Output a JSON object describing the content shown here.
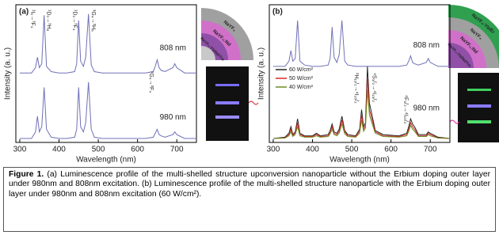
{
  "chart_data": [
    {
      "type": "line",
      "title": "(a)",
      "x_label": "Wavelength (nm)",
      "y_label": "Intensity (a. u.)",
      "x": [
        300,
        330,
        340,
        345,
        350,
        356,
        362,
        368,
        380,
        400,
        410,
        420,
        440,
        445,
        450,
        455,
        462,
        468,
        475,
        482,
        490,
        510,
        520,
        525,
        530,
        535,
        540,
        545,
        550,
        560,
        580,
        620,
        640,
        645,
        650,
        655,
        660,
        670,
        690,
        695,
        700,
        720,
        750
      ],
      "series": [
        {
          "name": "808 nm",
          "color": "#7070b8",
          "values": [
            5.3,
            5.3,
            5.7,
            6.5,
            5.7,
            6.0,
            9.7,
            5.8,
            5.4,
            5.3,
            5.3,
            5.3,
            5.4,
            6.0,
            9.3,
            6.2,
            5.8,
            6.5,
            9.8,
            5.9,
            5.4,
            5.3,
            5.3,
            5.3,
            5.3,
            5.3,
            5.3,
            5.3,
            5.3,
            5.3,
            5.3,
            5.3,
            5.4,
            5.8,
            6.3,
            5.7,
            5.5,
            5.4,
            5.7,
            6.0,
            5.7,
            5.3,
            5.3
          ]
        },
        {
          "name": "980 nm",
          "color": "#7070b8",
          "values": [
            0.3,
            0.3,
            0.8,
            2.0,
            0.8,
            1.2,
            4.2,
            1.0,
            0.4,
            0.3,
            0.3,
            0.3,
            0.4,
            1.0,
            4.2,
            1.2,
            0.8,
            1.5,
            4.6,
            1.0,
            0.4,
            0.3,
            0.3,
            0.3,
            0.3,
            0.3,
            0.3,
            0.3,
            0.3,
            0.3,
            0.3,
            0.3,
            0.4,
            0.7,
            1.0,
            0.6,
            0.5,
            0.4,
            0.6,
            0.8,
            0.6,
            0.3,
            0.3
          ]
        }
      ],
      "xlim": [
        290,
        750
      ],
      "xticks": [
        300,
        400,
        500,
        600,
        700
      ],
      "ylim": [
        0,
        10.5
      ],
      "annotations": [
        "¹I₆→³F₄",
        "¹D₂→³H₆",
        "¹D₂→³F₄",
        "¹G₄→³H₆",
        "¹G₄→³F₄"
      ]
    },
    {
      "type": "line",
      "title": "(b)",
      "x_label": "Wavelength (nm)",
      "y_label": "Intensity (a. u.)",
      "x": [
        300,
        330,
        340,
        345,
        350,
        356,
        362,
        368,
        380,
        400,
        410,
        420,
        440,
        445,
        450,
        455,
        462,
        468,
        475,
        482,
        490,
        510,
        520,
        525,
        530,
        535,
        540,
        545,
        550,
        560,
        580,
        620,
        640,
        645,
        650,
        655,
        660,
        670,
        690,
        695,
        700,
        720,
        750
      ],
      "series": [
        {
          "name": "808 nm",
          "color": "#7070b8",
          "values": [
            5.8,
            5.8,
            6.2,
            7.0,
            6.2,
            6.4,
            9.3,
            6.2,
            5.9,
            5.8,
            5.8,
            5.8,
            5.9,
            6.4,
            8.8,
            6.5,
            6.1,
            6.7,
            9.3,
            6.2,
            5.9,
            5.8,
            5.8,
            5.8,
            5.8,
            5.8,
            5.8,
            5.8,
            5.8,
            5.8,
            5.8,
            5.8,
            5.9,
            6.2,
            6.6,
            6.1,
            6.0,
            5.9,
            6.1,
            6.4,
            6.1,
            5.8,
            5.8
          ]
        },
        {
          "name": "60 W/cm²",
          "color": "#222222",
          "values": [
            0.3,
            0.4,
            0.7,
            1.2,
            0.6,
            0.8,
            1.8,
            0.7,
            0.5,
            0.5,
            0.7,
            0.5,
            0.6,
            0.9,
            1.4,
            0.8,
            0.7,
            1.0,
            2.0,
            0.9,
            0.6,
            0.5,
            1.0,
            2.5,
            1.2,
            1.5,
            5.8,
            3.0,
            2.3,
            0.9,
            0.6,
            0.5,
            0.7,
            1.2,
            1.8,
            1.4,
            1.2,
            0.6,
            0.6,
            0.8,
            0.7,
            0.4,
            0.3
          ]
        },
        {
          "name": "50 W/cm²",
          "color": "#d62728",
          "values": [
            0.3,
            0.35,
            0.6,
            1.0,
            0.5,
            0.7,
            1.5,
            0.6,
            0.45,
            0.45,
            0.6,
            0.45,
            0.5,
            0.8,
            1.2,
            0.7,
            0.6,
            0.85,
            1.7,
            0.8,
            0.5,
            0.45,
            0.85,
            2.1,
            1.0,
            1.3,
            4.9,
            2.5,
            1.9,
            0.8,
            0.5,
            0.45,
            0.6,
            1.0,
            1.5,
            1.2,
            1.0,
            0.5,
            0.5,
            0.7,
            0.6,
            0.35,
            0.3
          ]
        },
        {
          "name": "40 W/cm²",
          "color": "#6b8e23",
          "values": [
            0.3,
            0.33,
            0.5,
            0.8,
            0.45,
            0.6,
            1.2,
            0.5,
            0.4,
            0.4,
            0.5,
            0.4,
            0.45,
            0.65,
            1.0,
            0.6,
            0.5,
            0.7,
            1.4,
            0.65,
            0.45,
            0.4,
            0.7,
            1.7,
            0.85,
            1.1,
            4.0,
            2.1,
            1.6,
            0.7,
            0.45,
            0.4,
            0.5,
            0.85,
            1.3,
            1.0,
            0.85,
            0.45,
            0.45,
            0.6,
            0.5,
            0.33,
            0.3
          ]
        }
      ],
      "xlim": [
        290,
        750
      ],
      "xticks": [
        300,
        400,
        500,
        600,
        700
      ],
      "ylim": [
        0,
        10.5
      ],
      "legend": "center-left",
      "annotations": [
        "²H₁₁/₂→⁴I₁₅/₂",
        "⁴S₃/₂→⁴I₁₅/₂",
        "⁴F₉/₂→⁴I₁₅/₂",
        "980 nm"
      ]
    }
  ],
  "insets": {
    "a": [
      "NaYF₄",
      "NaYF₄:Nd",
      "NaYF₄:Yb/Nd/Tm"
    ],
    "b": [
      "NaYF₄:Yb/Er",
      "NaYF₄",
      "NaYF₄:Nd",
      "NaYF₄:Yb/Nd/Tm"
    ]
  },
  "caption": {
    "label": "Figure 1.",
    "text": "(a) Luminescence profile of the multi-shelled structure upconversion nanoparticle without the Erbium doping outer layer under 980nm and 808nm excitation. (b) Luminescence profile of the multi-shelled structure nanoparticle with the Erbium doping outer layer under 980nm and 808nm excitation (60 W/cm²)."
  }
}
